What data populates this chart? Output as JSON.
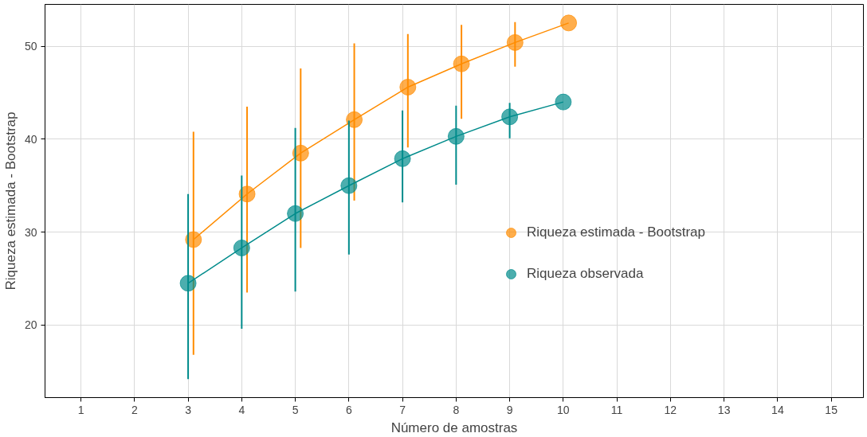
{
  "chart_data": {
    "type": "line",
    "xlabel": "Número de amostras",
    "ylabel": "Riqueza estimada - Bootstrap",
    "xlim": [
      0.33,
      15.6
    ],
    "ylim": [
      12.2,
      54.5
    ],
    "xticks": [
      1,
      2,
      3,
      4,
      5,
      6,
      7,
      8,
      9,
      10,
      11,
      12,
      13,
      14,
      15
    ],
    "yticks": [
      20,
      30,
      40,
      50
    ],
    "grid": true,
    "legend": "right",
    "marker": "circle",
    "line_style": "solid",
    "series": [
      {
        "name": "Riqueza estimada - Bootstrap",
        "color": "#ff8c00",
        "x": [
          3.1,
          4.1,
          5.1,
          6.1,
          7.1,
          8.1,
          9.1,
          10.1
        ],
        "values": [
          29.2,
          34.1,
          38.5,
          42.1,
          45.6,
          48.1,
          50.4,
          52.5
        ],
        "errors": [
          [
            16.8,
            40.8
          ],
          [
            23.5,
            43.5
          ],
          [
            28.3,
            47.6
          ],
          [
            33.4,
            50.3
          ],
          [
            39.1,
            51.3
          ],
          [
            42.2,
            52.3
          ],
          [
            47.8,
            52.6
          ],
          null
        ]
      },
      {
        "name": "Riqueza observada",
        "color": "#008b8b",
        "x": [
          3,
          4,
          5,
          6,
          7,
          8,
          9,
          10
        ],
        "values": [
          24.5,
          28.3,
          32.0,
          35.0,
          37.9,
          40.3,
          42.4,
          44.0
        ],
        "errors": [
          [
            14.2,
            34.1
          ],
          [
            19.6,
            36.1
          ],
          [
            23.6,
            41.2
          ],
          [
            27.6,
            42.0
          ],
          [
            33.2,
            43.1
          ],
          [
            35.1,
            43.6
          ],
          [
            40.1,
            43.9
          ],
          null
        ]
      }
    ]
  }
}
